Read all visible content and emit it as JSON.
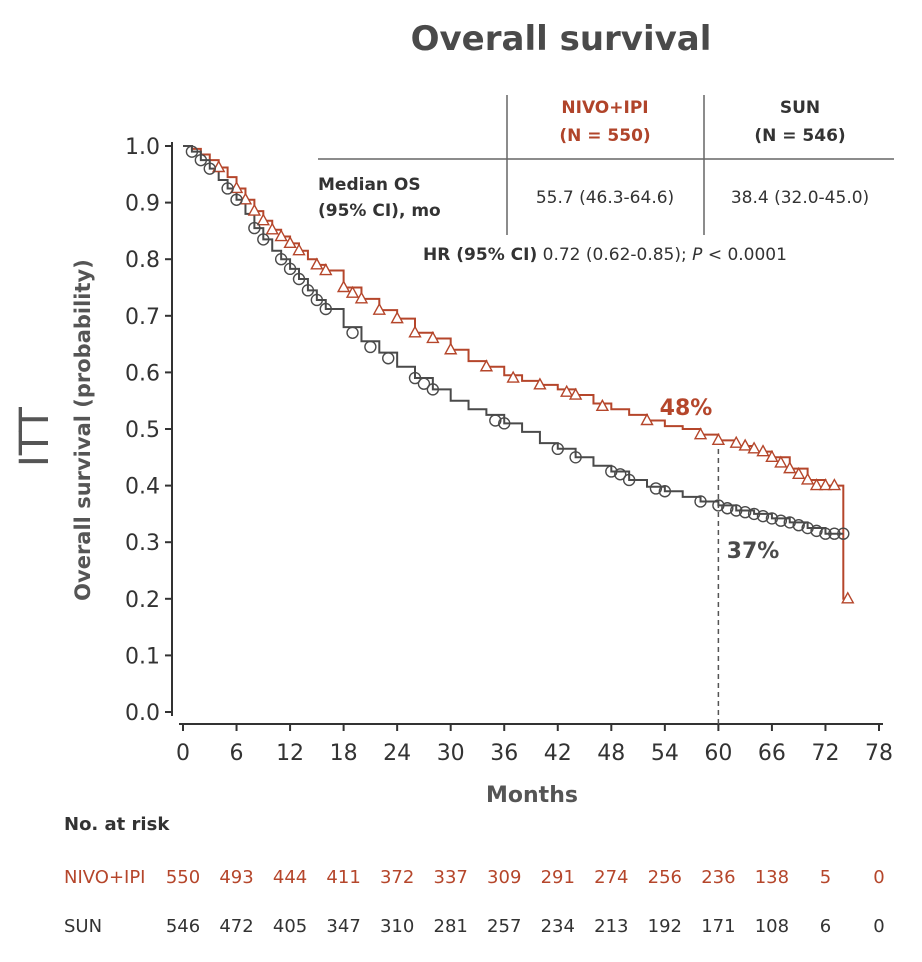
{
  "colors": {
    "nivo": "#b5462b",
    "sun": "#4a4a4a",
    "axis": "#333333"
  },
  "chart_data": {
    "type": "line",
    "title": "Overall survival",
    "side_label": "ITT",
    "ylabel": "Overall survival (probability)",
    "xlabel": "Months",
    "xlim": [
      0,
      78
    ],
    "ylim": [
      0,
      1
    ],
    "x_ticks": [
      0,
      6,
      12,
      18,
      24,
      30,
      36,
      42,
      48,
      54,
      60,
      66,
      72,
      78
    ],
    "y_ticks": [
      "0.0",
      "0.1",
      "0.2",
      "0.3",
      "0.4",
      "0.5",
      "0.6",
      "0.7",
      "0.8",
      "0.9",
      "1.0"
    ],
    "reference_line_x": 60,
    "series": [
      {
        "name": "NIVO+IPI",
        "color": "#b5462b",
        "marker": "triangle",
        "x": [
          0,
          1,
          2,
          3,
          4,
          5,
          6,
          7,
          8,
          9,
          10,
          11,
          12,
          13,
          14,
          15,
          16,
          18,
          20,
          22,
          24,
          26,
          28,
          30,
          32,
          34,
          36,
          38,
          40,
          42,
          44,
          46,
          48,
          50,
          52,
          54,
          56,
          58,
          60,
          62,
          64,
          66,
          68,
          70,
          72,
          74,
          74,
          74.5
        ],
        "y": [
          1.0,
          0.995,
          0.985,
          0.975,
          0.962,
          0.945,
          0.925,
          0.905,
          0.885,
          0.868,
          0.852,
          0.84,
          0.828,
          0.815,
          0.8,
          0.79,
          0.78,
          0.75,
          0.73,
          0.71,
          0.695,
          0.67,
          0.66,
          0.64,
          0.62,
          0.61,
          0.595,
          0.585,
          0.578,
          0.57,
          0.56,
          0.545,
          0.535,
          0.525,
          0.515,
          0.505,
          0.5,
          0.49,
          0.48,
          0.47,
          0.46,
          0.45,
          0.43,
          0.41,
          0.4,
          0.4,
          0.2,
          0.2
        ],
        "censor_x": [
          4,
          6,
          7,
          8,
          9,
          10,
          11,
          12,
          13,
          15,
          16,
          18,
          19,
          20,
          22,
          24,
          26,
          28,
          30,
          34,
          37,
          40,
          43,
          44,
          47,
          52,
          58,
          60,
          62,
          63,
          64,
          65,
          66,
          67,
          68,
          69,
          70,
          71,
          72,
          73,
          74.5
        ],
        "censor_y": [
          0.962,
          0.925,
          0.905,
          0.885,
          0.868,
          0.852,
          0.84,
          0.828,
          0.815,
          0.79,
          0.78,
          0.75,
          0.74,
          0.73,
          0.71,
          0.695,
          0.67,
          0.66,
          0.64,
          0.61,
          0.59,
          0.578,
          0.565,
          0.56,
          0.54,
          0.515,
          0.49,
          0.48,
          0.475,
          0.47,
          0.465,
          0.46,
          0.45,
          0.44,
          0.43,
          0.42,
          0.41,
          0.4,
          0.4,
          0.4,
          0.2
        ]
      },
      {
        "name": "SUN",
        "color": "#4a4a4a",
        "marker": "circle",
        "x": [
          0,
          1,
          2,
          3,
          4,
          5,
          6,
          7,
          8,
          9,
          10,
          11,
          12,
          13,
          14,
          15,
          16,
          18,
          20,
          22,
          24,
          26,
          28,
          30,
          32,
          34,
          36,
          38,
          40,
          42,
          44,
          46,
          48,
          50,
          52,
          54,
          56,
          58,
          60,
          62,
          64,
          66,
          68,
          70,
          72,
          74
        ],
        "y": [
          1.0,
          0.99,
          0.975,
          0.96,
          0.94,
          0.925,
          0.905,
          0.88,
          0.855,
          0.835,
          0.815,
          0.8,
          0.783,
          0.765,
          0.745,
          0.728,
          0.712,
          0.68,
          0.655,
          0.635,
          0.61,
          0.59,
          0.57,
          0.55,
          0.535,
          0.525,
          0.51,
          0.495,
          0.475,
          0.465,
          0.45,
          0.435,
          0.425,
          0.41,
          0.398,
          0.39,
          0.38,
          0.372,
          0.365,
          0.356,
          0.35,
          0.342,
          0.335,
          0.325,
          0.315,
          0.315
        ],
        "censor_x": [
          1,
          2,
          3,
          5,
          6,
          8,
          9,
          11,
          12,
          13,
          14,
          15,
          16,
          19,
          21,
          23,
          26,
          27,
          28,
          35,
          36,
          42,
          44,
          48,
          49,
          50,
          53,
          54,
          58,
          60,
          61,
          62,
          63,
          64,
          65,
          66,
          67,
          68,
          69,
          70,
          71,
          72,
          73,
          74
        ],
        "censor_y": [
          0.99,
          0.975,
          0.96,
          0.925,
          0.905,
          0.855,
          0.835,
          0.8,
          0.783,
          0.765,
          0.745,
          0.728,
          0.712,
          0.67,
          0.645,
          0.625,
          0.59,
          0.58,
          0.57,
          0.515,
          0.51,
          0.465,
          0.45,
          0.425,
          0.42,
          0.41,
          0.395,
          0.39,
          0.372,
          0.365,
          0.36,
          0.356,
          0.353,
          0.35,
          0.346,
          0.342,
          0.338,
          0.335,
          0.33,
          0.325,
          0.32,
          0.315,
          0.315,
          0.315
        ]
      }
    ],
    "annotations": [
      {
        "text": "48%",
        "series": "NIVO+IPI",
        "x": 60,
        "y": 0.48
      },
      {
        "text": "37%",
        "series": "SUN",
        "x": 60,
        "y": 0.37
      }
    ],
    "summary_table": {
      "headers": [
        "NIVO+IPI\n(N = 550)",
        "SUN\n(N = 546)"
      ],
      "row_label": "Median OS\n(95% CI), mo",
      "values": [
        "55.7 (46.3-64.6)",
        "38.4 (32.0-45.0)"
      ],
      "hr_label": "HR (95% CI)",
      "hr_value": "0.72 (0.62-0.85);",
      "p_label": "P",
      "p_value": "< 0.0001"
    },
    "risk_table": {
      "title": "No. at risk",
      "months": [
        0,
        6,
        12,
        18,
        24,
        30,
        36,
        42,
        48,
        54,
        60,
        66,
        72,
        78
      ],
      "rows": [
        {
          "label": "NIVO+IPI",
          "values": [
            "550",
            "493",
            "444",
            "411",
            "372",
            "337",
            "309",
            "291",
            "274",
            "256",
            "236",
            "138",
            "5",
            "0"
          ]
        },
        {
          "label": "SUN",
          "values": [
            "546",
            "472",
            "405",
            "347",
            "310",
            "281",
            "257",
            "234",
            "213",
            "192",
            "171",
            "108",
            "6",
            "0"
          ]
        }
      ]
    }
  }
}
